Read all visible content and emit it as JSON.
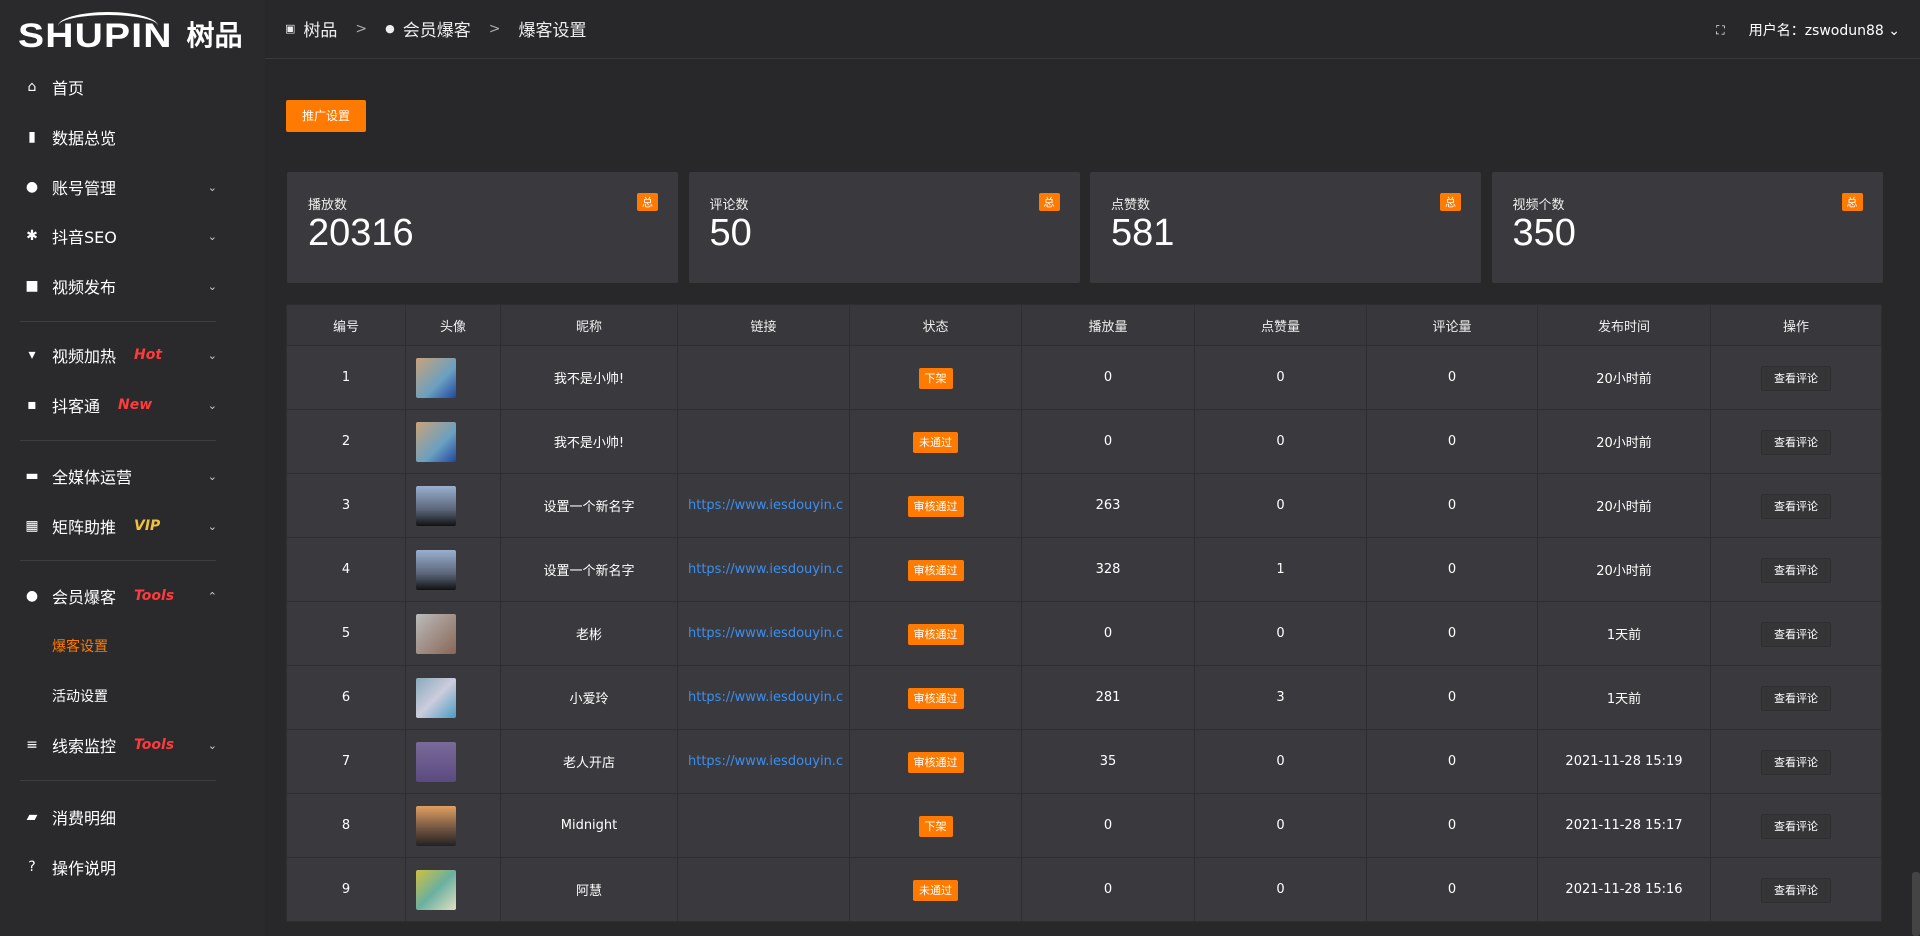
{
  "logo": {
    "en": "SHUPIN",
    "cn": "树品"
  },
  "sidebar": {
    "items": [
      {
        "label": "首页",
        "icon": "home-icon",
        "glyph": "⌂"
      },
      {
        "label": "数据总览",
        "icon": "bar-chart-icon",
        "glyph": "▮"
      },
      {
        "label": "账号管理",
        "icon": "user-icon",
        "glyph": "●",
        "chev": "⌄"
      },
      {
        "label": "抖音SEO",
        "icon": "gear-icon",
        "glyph": "✱",
        "chev": "⌄"
      },
      {
        "label": "视频发布",
        "icon": "video-icon",
        "glyph": "■",
        "chev": "⌄"
      },
      {
        "label": "视频加热",
        "icon": "easel-icon",
        "glyph": "▾",
        "tag": "Hot",
        "chev": "⌄"
      },
      {
        "label": "抖客通",
        "icon": "chat-icon",
        "glyph": "▪",
        "tag": "New",
        "chev": "⌄"
      },
      {
        "label": "全媒体运营",
        "icon": "monitor-icon",
        "glyph": "▬",
        "chev": "⌄"
      },
      {
        "label": "矩阵助推",
        "icon": "grid-icon",
        "glyph": "▦",
        "tag": "VIP",
        "chev": "⌄"
      },
      {
        "label": "会员爆客",
        "icon": "user-icon",
        "glyph": "●",
        "tag": "Tools",
        "chev": "⌃"
      },
      {
        "label": "线索监控",
        "icon": "sliders-icon",
        "glyph": "≡",
        "tag": "Tools",
        "chev": "⌄"
      },
      {
        "label": "消费明细",
        "icon": "wallet-icon",
        "glyph": "▰"
      },
      {
        "label": "操作说明",
        "icon": "help-icon",
        "glyph": "?"
      }
    ],
    "sub": [
      {
        "label": "爆客设置",
        "active": true
      },
      {
        "label": "活动设置"
      }
    ]
  },
  "colors": {
    "accent": "#ff7a00",
    "hot": "#ff3b3b",
    "vip": "#f0c040",
    "link": "#3b8ef0"
  },
  "breadcrumb": [
    "树品",
    "会员爆客",
    "爆客设置"
  ],
  "header": {
    "user": "用户名：zswodun88"
  },
  "promo_label": "推广设置",
  "stats": [
    {
      "label": "播放数",
      "value": "20316",
      "badge": "总"
    },
    {
      "label": "评论数",
      "value": "50",
      "badge": "总"
    },
    {
      "label": "点赞数",
      "value": "581",
      "badge": "总"
    },
    {
      "label": "视频个数",
      "value": "350",
      "badge": "总"
    }
  ],
  "table": {
    "headers": [
      "编号",
      "头像",
      "昵称",
      "链接",
      "状态",
      "播放量",
      "点赞量",
      "评论量",
      "发布时间",
      "操作"
    ],
    "rows": [
      {
        "id": "1",
        "name": "我不是小帅!",
        "link": "",
        "status": "下架",
        "plays": "0",
        "likes": "0",
        "comments": "0",
        "time": "20小时前",
        "op": "查看评论"
      },
      {
        "id": "2",
        "name": "我不是小帅!",
        "link": "",
        "status": "未通过",
        "plays": "0",
        "likes": "0",
        "comments": "0",
        "time": "20小时前",
        "op": "查看评论"
      },
      {
        "id": "3",
        "name": "设置一个新名字",
        "link": "https://www.iesdouyin.c",
        "status": "审核通过",
        "plays": "263",
        "likes": "0",
        "comments": "0",
        "time": "20小时前",
        "op": "查看评论"
      },
      {
        "id": "4",
        "name": "设置一个新名字",
        "link": "https://www.iesdouyin.c",
        "status": "审核通过",
        "plays": "328",
        "likes": "1",
        "comments": "0",
        "time": "20小时前",
        "op": "查看评论"
      },
      {
        "id": "5",
        "name": "老彬",
        "link": "https://www.iesdouyin.c",
        "status": "审核通过",
        "plays": "0",
        "likes": "0",
        "comments": "0",
        "time": "1天前",
        "op": "查看评论"
      },
      {
        "id": "6",
        "name": "小爱玲",
        "link": "https://www.iesdouyin.c",
        "status": "审核通过",
        "plays": "281",
        "likes": "3",
        "comments": "0",
        "time": "1天前",
        "op": "查看评论"
      },
      {
        "id": "7",
        "name": "老人开店",
        "link": "https://www.iesdouyin.c",
        "status": "审核通过",
        "plays": "35",
        "likes": "0",
        "comments": "0",
        "time": "2021-11-28 15:19",
        "op": "查看评论"
      },
      {
        "id": "8",
        "name": "Midnight",
        "link": "",
        "status": "下架",
        "plays": "0",
        "likes": "0",
        "comments": "0",
        "time": "2021-11-28 15:17",
        "op": "查看评论"
      },
      {
        "id": "9",
        "name": "阿慧",
        "link": "",
        "status": "未通过",
        "plays": "0",
        "likes": "0",
        "comments": "0",
        "time": "2021-11-28 15:16",
        "op": "查看评论"
      }
    ]
  }
}
